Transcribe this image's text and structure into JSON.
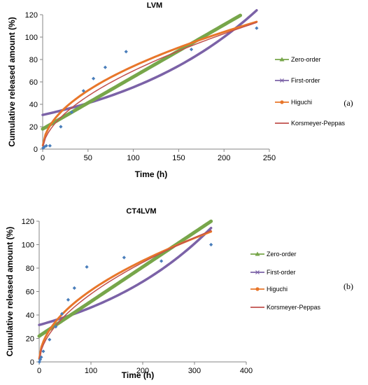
{
  "legend_labels": [
    "Zero-order",
    "First-order",
    "Higuchi",
    "Korsmeyer-Peppas"
  ],
  "colors": {
    "zero": "#77a64a",
    "first": "#7b62a7",
    "higuchi": "#e8762a",
    "peppas": "#c0504d",
    "points": "#4a7ebb"
  },
  "chart_data": [
    {
      "type": "scatter",
      "title": "LVM",
      "panel_label": "(a)",
      "xlabel": "Time (h)",
      "ylabel": "Cumulative released amount (%)",
      "xlim": [
        0,
        250
      ],
      "ylim": [
        0,
        120
      ],
      "x_ticks": [
        0,
        50,
        100,
        150,
        200,
        250
      ],
      "y_ticks": [
        0,
        20,
        40,
        60,
        80,
        100,
        120
      ],
      "legend_position": "right",
      "grid": false,
      "observed": {
        "x": [
          0.5,
          2,
          4,
          8,
          20,
          32,
          45,
          56,
          69,
          92,
          164,
          236
        ],
        "y": [
          1,
          2,
          3,
          3,
          20,
          33,
          52,
          63,
          73,
          87,
          89,
          108
        ]
      },
      "fits": {
        "zero_order": {
          "intercept": 18,
          "slope": 0.465,
          "x_max": 218
        },
        "first_order": {
          "y0": 30.5,
          "k": 0.00594,
          "x_max": 236
        },
        "higuchi": {
          "k": 7.4,
          "x_max": 236
        },
        "peppas": {
          "k": 5.3,
          "n": 0.56,
          "x_max": 236
        }
      }
    },
    {
      "type": "scatter",
      "title": "CT4LVM",
      "panel_label": "(b)",
      "xlabel": "Time (h)",
      "ylabel": "Cumulative released amount (%)",
      "xlim": [
        0,
        400
      ],
      "ylim": [
        0,
        120
      ],
      "x_ticks": [
        0,
        100,
        200,
        300,
        400
      ],
      "y_ticks": [
        0,
        20,
        40,
        60,
        80,
        100,
        120
      ],
      "legend_position": "right",
      "grid": false,
      "observed": {
        "x": [
          0.5,
          2,
          4,
          8,
          20,
          32,
          44,
          56,
          68,
          92,
          164,
          236,
          332
        ],
        "y": [
          0,
          2,
          4,
          9,
          19,
          30,
          41,
          53,
          63,
          81,
          89,
          86,
          100
        ]
      },
      "fits": {
        "zero_order": {
          "intercept": 22,
          "slope": 0.295,
          "x_max": 332
        },
        "first_order": {
          "y0": 31.5,
          "k": 0.00388,
          "x_max": 332
        },
        "higuchi": {
          "k": 6.1,
          "x_max": 332
        },
        "peppas": {
          "k": 4.6,
          "n": 0.55,
          "x_max": 332
        }
      }
    }
  ]
}
